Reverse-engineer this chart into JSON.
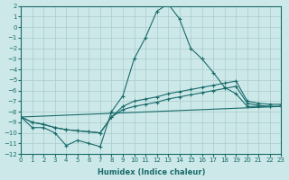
{
  "xlabel": "Humidex (Indice chaleur)",
  "ylabel": "",
  "bg_color": "#cce8e8",
  "grid_color": "#aacccc",
  "line_color": "#1a6b6b",
  "xlim": [
    0,
    23
  ],
  "ylim": [
    -12,
    2
  ],
  "xticks": [
    0,
    1,
    2,
    3,
    4,
    5,
    6,
    7,
    8,
    9,
    10,
    11,
    12,
    13,
    14,
    15,
    16,
    17,
    18,
    19,
    20,
    21,
    22,
    23
  ],
  "yticks": [
    2,
    1,
    0,
    -1,
    -2,
    -3,
    -4,
    -5,
    -6,
    -7,
    -8,
    -9,
    -10,
    -11,
    -12
  ],
  "series": [
    {
      "x": [
        0,
        1,
        2,
        3,
        4,
        5,
        6,
        7,
        8,
        9,
        10,
        11,
        12,
        13,
        14,
        15,
        16,
        17,
        18,
        19,
        20,
        21,
        22,
        23
      ],
      "y": [
        -8.5,
        -9.5,
        -9.5,
        -10,
        -11.2,
        -10.7,
        -11,
        -11.3,
        -8,
        -6.5,
        -3,
        -1,
        1.5,
        2.2,
        0.8,
        -2,
        -3,
        -4.3,
        -5.7,
        -6.3,
        -7.5,
        -7.5,
        -7.5,
        -7.5
      ],
      "marker": "+"
    },
    {
      "x": [
        0,
        1,
        2,
        3,
        4,
        5,
        6,
        7,
        8,
        9,
        10,
        11,
        12,
        13,
        14,
        15,
        16,
        17,
        18,
        19,
        20,
        21,
        22,
        23
      ],
      "y": [
        -8.5,
        -9.0,
        -9.2,
        -9.5,
        -9.7,
        -9.8,
        -9.9,
        -10.0,
        -8.5,
        -7.8,
        -7.5,
        -7.3,
        -7.1,
        -6.8,
        -6.6,
        -6.4,
        -6.2,
        -6.0,
        -5.8,
        -5.6,
        -7.2,
        -7.4,
        -7.5,
        -7.5
      ],
      "marker": "+"
    },
    {
      "x": [
        0,
        1,
        2,
        3,
        4,
        5,
        6,
        7,
        8,
        9,
        10,
        11,
        12,
        13,
        14,
        15,
        16,
        17,
        18,
        19,
        20,
        21,
        22,
        23
      ],
      "y": [
        -8.5,
        -9.0,
        -9.2,
        -9.5,
        -9.7,
        -9.8,
        -9.9,
        -10.0,
        -8.5,
        -7.5,
        -7.0,
        -6.8,
        -6.6,
        -6.3,
        -6.1,
        -5.9,
        -5.7,
        -5.5,
        -5.3,
        -5.1,
        -7.0,
        -7.2,
        -7.3,
        -7.3
      ],
      "marker": "+"
    },
    {
      "x": [
        0,
        23
      ],
      "y": [
        -8.5,
        -7.5
      ],
      "marker": null
    }
  ]
}
